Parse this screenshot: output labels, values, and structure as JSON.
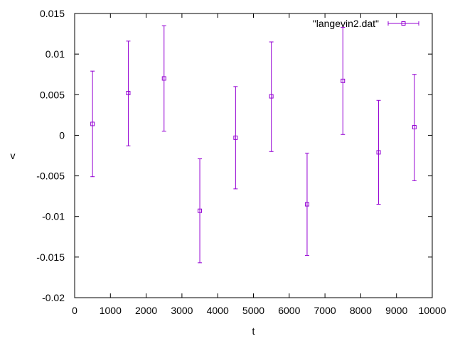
{
  "chart_data": {
    "type": "scatter",
    "xlabel": "t",
    "ylabel": "v",
    "xlim": [
      0,
      10000
    ],
    "ylim": [
      -0.02,
      0.015
    ],
    "x_ticks": [
      0,
      1000,
      2000,
      3000,
      4000,
      5000,
      6000,
      7000,
      8000,
      9000,
      10000
    ],
    "y_ticks": [
      -0.02,
      -0.015,
      -0.01,
      -0.005,
      0,
      0.005,
      0.01,
      0.015
    ],
    "x_tick_labels": [
      "0",
      "1000",
      "2000",
      "3000",
      "4000",
      "5000",
      "6000",
      "7000",
      "8000",
      "9000",
      "10000"
    ],
    "y_tick_labels": [
      "-0.02",
      "-0.015",
      "-0.01",
      "-0.005",
      "0",
      "0.005",
      "0.01",
      "0.015"
    ],
    "grid": false,
    "legend_position": "top-right",
    "series": [
      {
        "name": "\"langevin2.dat\"",
        "color": "#9400d3",
        "marker": "square",
        "error_bars": true,
        "points": [
          {
            "x": 500,
            "y": 0.0014,
            "ylow": -0.0051,
            "yhigh": 0.0079
          },
          {
            "x": 1500,
            "y": 0.0052,
            "ylow": -0.0013,
            "yhigh": 0.0116
          },
          {
            "x": 2500,
            "y": 0.007,
            "ylow": 0.0005,
            "yhigh": 0.0135
          },
          {
            "x": 3500,
            "y": -0.0093,
            "ylow": -0.0157,
            "yhigh": -0.0029
          },
          {
            "x": 4500,
            "y": -0.0003,
            "ylow": -0.0066,
            "yhigh": 0.006
          },
          {
            "x": 5500,
            "y": 0.0048,
            "ylow": -0.002,
            "yhigh": 0.0115
          },
          {
            "x": 6500,
            "y": -0.0085,
            "ylow": -0.0148,
            "yhigh": -0.0022
          },
          {
            "x": 7500,
            "y": 0.0067,
            "ylow": 0.0001,
            "yhigh": 0.0133
          },
          {
            "x": 8500,
            "y": -0.0021,
            "ylow": -0.0085,
            "yhigh": 0.0043
          },
          {
            "x": 9500,
            "y": 0.001,
            "ylow": -0.0056,
            "yhigh": 0.0075
          }
        ]
      }
    ]
  }
}
